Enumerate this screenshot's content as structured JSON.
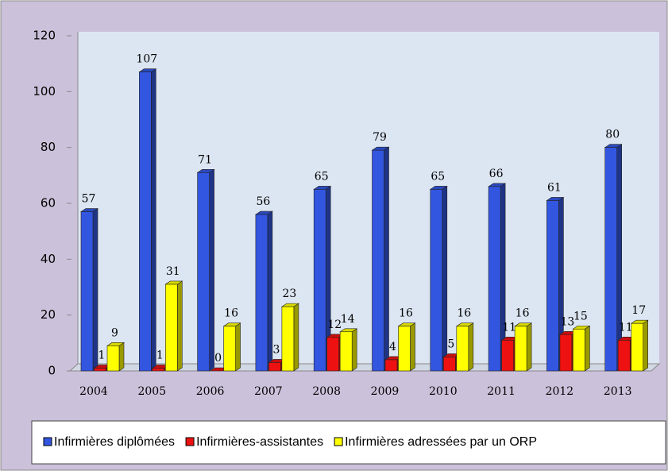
{
  "chart_data": {
    "type": "bar3d",
    "categories": [
      "2004",
      "2005",
      "2006",
      "2007",
      "2008",
      "2009",
      "2010",
      "2011",
      "2012",
      "2013"
    ],
    "series": [
      {
        "name": "Infirmières diplômées",
        "color": "#3356e0",
        "values": [
          57,
          107,
          71,
          56,
          65,
          79,
          65,
          66,
          61,
          80
        ]
      },
      {
        "name": "Infirmières-assistantes",
        "color": "#ee1111",
        "values": [
          1,
          1,
          0,
          3,
          12,
          4,
          5,
          11,
          13,
          11
        ]
      },
      {
        "name": "Infirmières adressées par un ORP",
        "color": "#ffff00",
        "values": [
          9,
          31,
          16,
          23,
          14,
          16,
          16,
          16,
          15,
          17
        ]
      }
    ],
    "ylim": [
      0,
      120
    ],
    "yticks": [
      0,
      20,
      40,
      60,
      80,
      100,
      120
    ],
    "legend": "bottom"
  }
}
